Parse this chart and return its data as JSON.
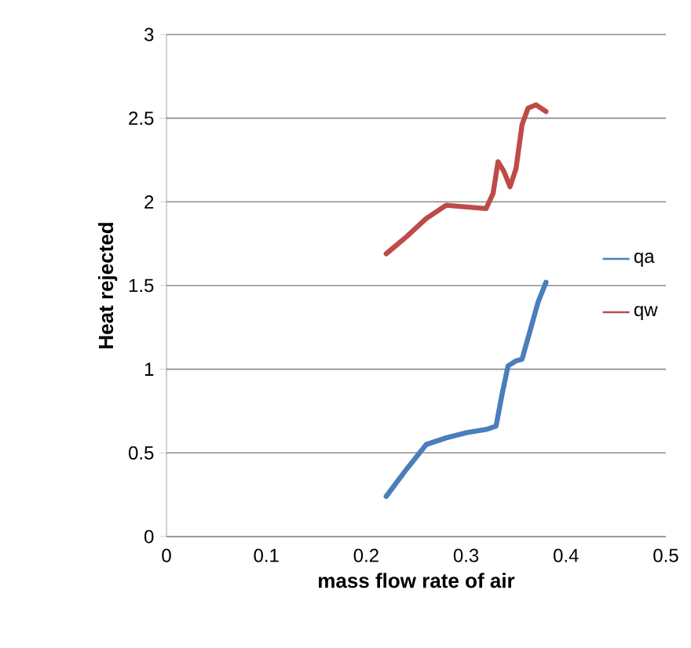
{
  "chart_data": {
    "type": "line",
    "xlabel": "mass flow rate of air",
    "ylabel": "Heat rejected",
    "xlim": [
      0,
      0.5
    ],
    "xticks": [
      0,
      0.1,
      0.2,
      0.3,
      0.4,
      0.5
    ],
    "ylim": [
      0,
      3
    ],
    "yticks": [
      0,
      0.5,
      1,
      1.5,
      2,
      2.5,
      3
    ],
    "grid": "y",
    "legend": "right",
    "marker": "none",
    "line_style": "solid",
    "series": [
      {
        "name": "qa",
        "color": "#4a7ebb",
        "x": [
          0.22,
          0.24,
          0.26,
          0.28,
          0.3,
          0.32,
          0.33,
          0.336,
          0.342,
          0.35,
          0.356,
          0.365,
          0.372,
          0.38
        ],
        "values": [
          0.24,
          0.4,
          0.55,
          0.59,
          0.62,
          0.64,
          0.66,
          0.85,
          1.02,
          1.05,
          1.06,
          1.25,
          1.4,
          1.52
        ]
      },
      {
        "name": "qw",
        "color": "#be4b48",
        "x": [
          0.22,
          0.24,
          0.26,
          0.28,
          0.3,
          0.32,
          0.327,
          0.332,
          0.338,
          0.344,
          0.35,
          0.356,
          0.362,
          0.37,
          0.38
        ],
        "values": [
          1.69,
          1.79,
          1.9,
          1.98,
          1.97,
          1.96,
          2.05,
          2.24,
          2.18,
          2.09,
          2.2,
          2.46,
          2.56,
          2.58,
          2.54
        ]
      }
    ]
  }
}
